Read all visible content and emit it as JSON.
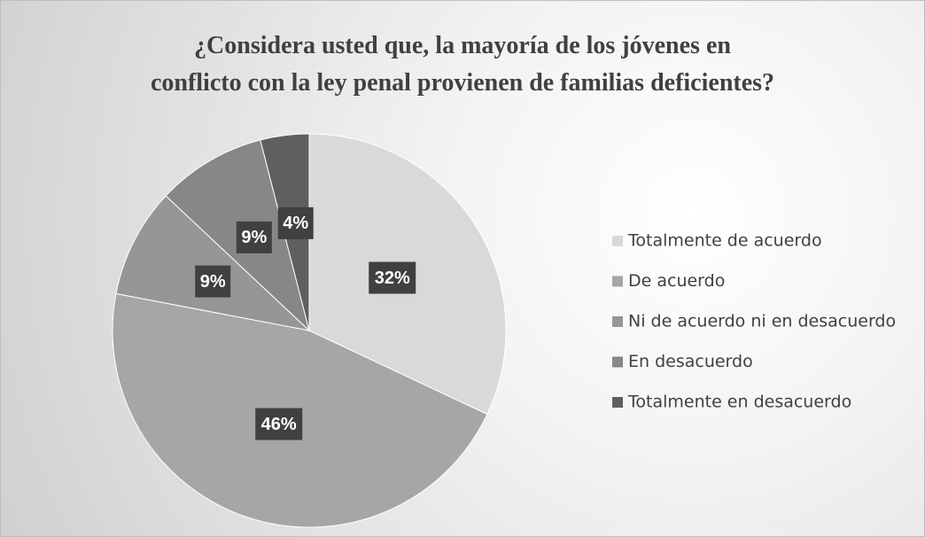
{
  "chart_data": {
    "type": "pie",
    "title": "¿Considera usted que, la mayoría de los jóvenes en\nconflicto con la ley penal provienen de familias deficientes?",
    "categories": [
      "Totalmente de acuerdo",
      "De acuerdo",
      "Ni de acuerdo ni en desacuerdo",
      "En desacuerdo",
      "Totalmente en desacuerdo"
    ],
    "values": [
      32,
      46,
      9,
      9,
      4
    ],
    "value_labels": [
      "32%",
      "46%",
      "9%",
      "9%",
      "4%"
    ],
    "colors": [
      "#d9d9d9",
      "#a6a6a6",
      "#969696",
      "#878787",
      "#5f5f5f"
    ],
    "legend": "right"
  }
}
